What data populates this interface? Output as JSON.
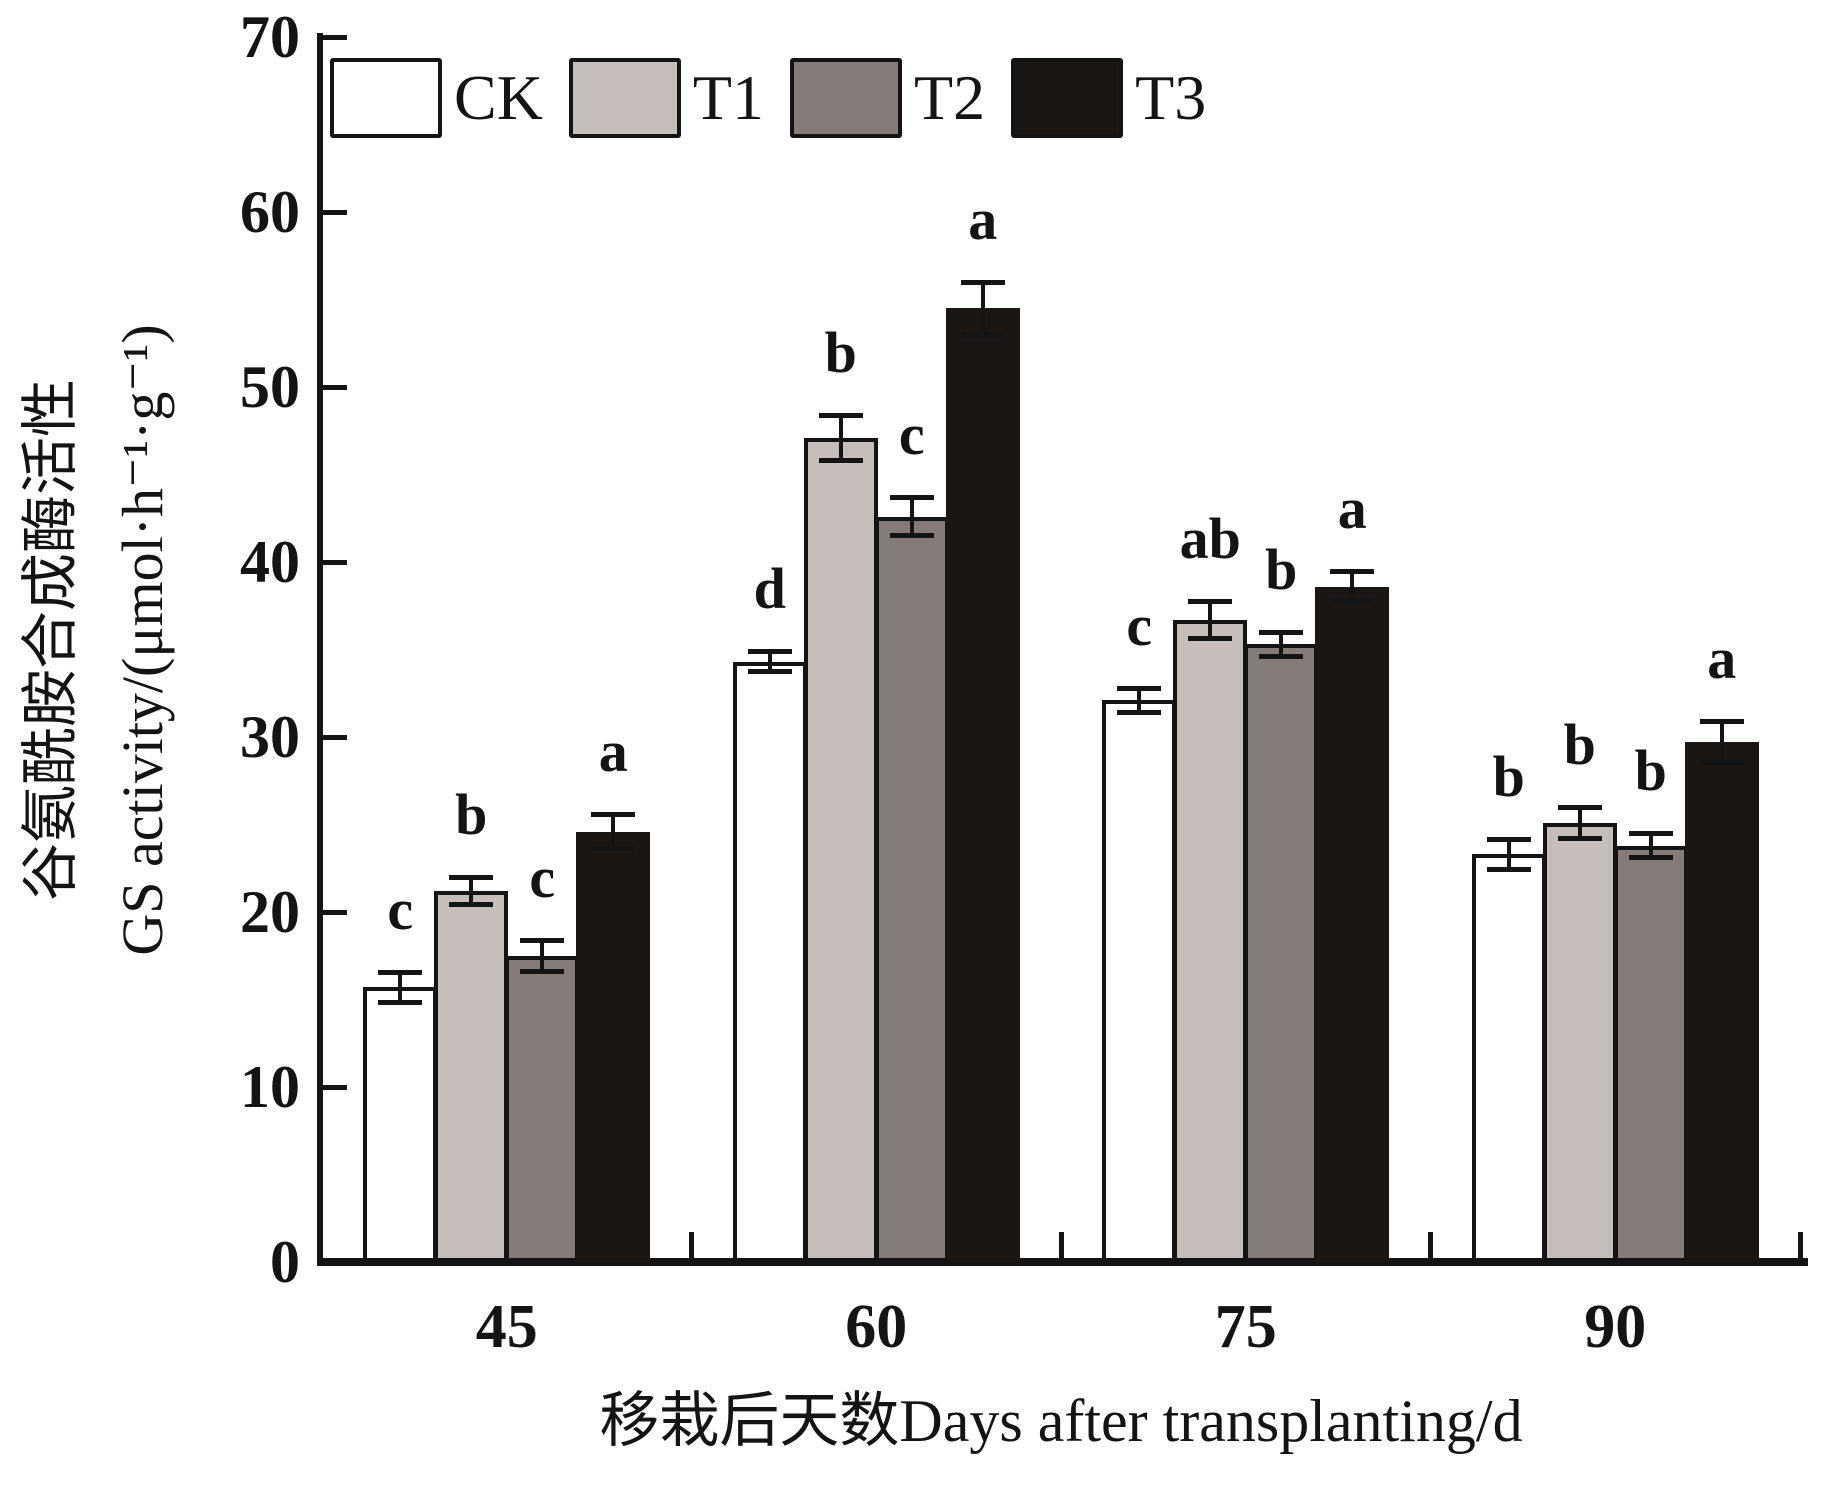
{
  "chart_data": {
    "type": "bar",
    "title": "",
    "categories": [
      "45",
      "60",
      "75",
      "90"
    ],
    "series": [
      {
        "name": "CK",
        "color": "#ffffff",
        "values": [
          15.7,
          34.3,
          32.1,
          23.3
        ],
        "errors": [
          0.9,
          0.6,
          0.7,
          0.9
        ],
        "letters": [
          "c",
          "d",
          "c",
          "b"
        ]
      },
      {
        "name": "T1",
        "color": "#c6beba",
        "values": [
          21.2,
          47.1,
          36.7,
          25.1
        ],
        "errors": [
          0.8,
          1.3,
          1.1,
          0.9
        ],
        "letters": [
          "b",
          "b",
          "ab",
          "b"
        ]
      },
      {
        "name": "T2",
        "color": "#857b79",
        "values": [
          17.5,
          42.6,
          35.3,
          23.8
        ],
        "errors": [
          0.9,
          1.1,
          0.7,
          0.7
        ],
        "letters": [
          "c",
          "c",
          "b",
          "b"
        ]
      },
      {
        "name": "T3",
        "color": "#1a1613",
        "values": [
          24.6,
          54.5,
          38.6,
          29.7
        ],
        "errors": [
          1.0,
          1.5,
          0.9,
          1.2
        ],
        "letters": [
          "a",
          "a",
          "a",
          "a"
        ]
      }
    ],
    "ylabel_line1": "谷氨酰胺合成酶活性",
    "ylabel_line2": "GS activity/(μmol·h⁻¹·g⁻¹)",
    "xlabel": "移栽后天数Days after transplanting/d",
    "ylim": [
      0,
      70
    ],
    "yticks": [
      0,
      10,
      20,
      30,
      40,
      50,
      60,
      70
    ],
    "legend_position": "top",
    "grid": false,
    "axis_color": "#141414",
    "error_bar_color": "#141414"
  }
}
